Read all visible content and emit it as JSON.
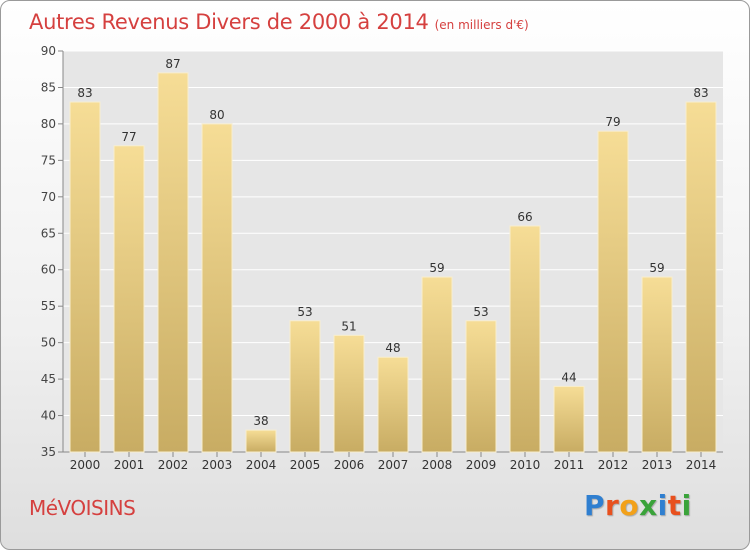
{
  "title": "Autres Revenus Divers de 2000 à 2014",
  "subtitle": "(en milliers d'€)",
  "location": "MéVOISINS",
  "logo": {
    "letters": [
      "P",
      "r",
      "o",
      "x",
      "i",
      "t",
      "i"
    ],
    "colors": [
      "#2f7fd0",
      "#e8501e",
      "#f2a11a",
      "#3aa33a",
      "#2f7fd0",
      "#e8501e",
      "#3aa33a"
    ]
  },
  "chart_data": {
    "type": "bar",
    "categories": [
      "2000",
      "2001",
      "2002",
      "2003",
      "2004",
      "2005",
      "2006",
      "2007",
      "2008",
      "2009",
      "2010",
      "2011",
      "2012",
      "2013",
      "2014"
    ],
    "values": [
      83,
      77,
      87,
      80,
      38,
      53,
      51,
      48,
      59,
      53,
      66,
      44,
      79,
      59,
      83
    ],
    "ylim": [
      35,
      90
    ],
    "yticks": [
      35,
      40,
      45,
      50,
      55,
      60,
      65,
      70,
      75,
      80,
      85,
      90
    ],
    "grid": true,
    "bar_color_top": "#f6dd96",
    "bar_color_bottom": "#c8ac63",
    "xlabel": "",
    "ylabel": ""
  }
}
